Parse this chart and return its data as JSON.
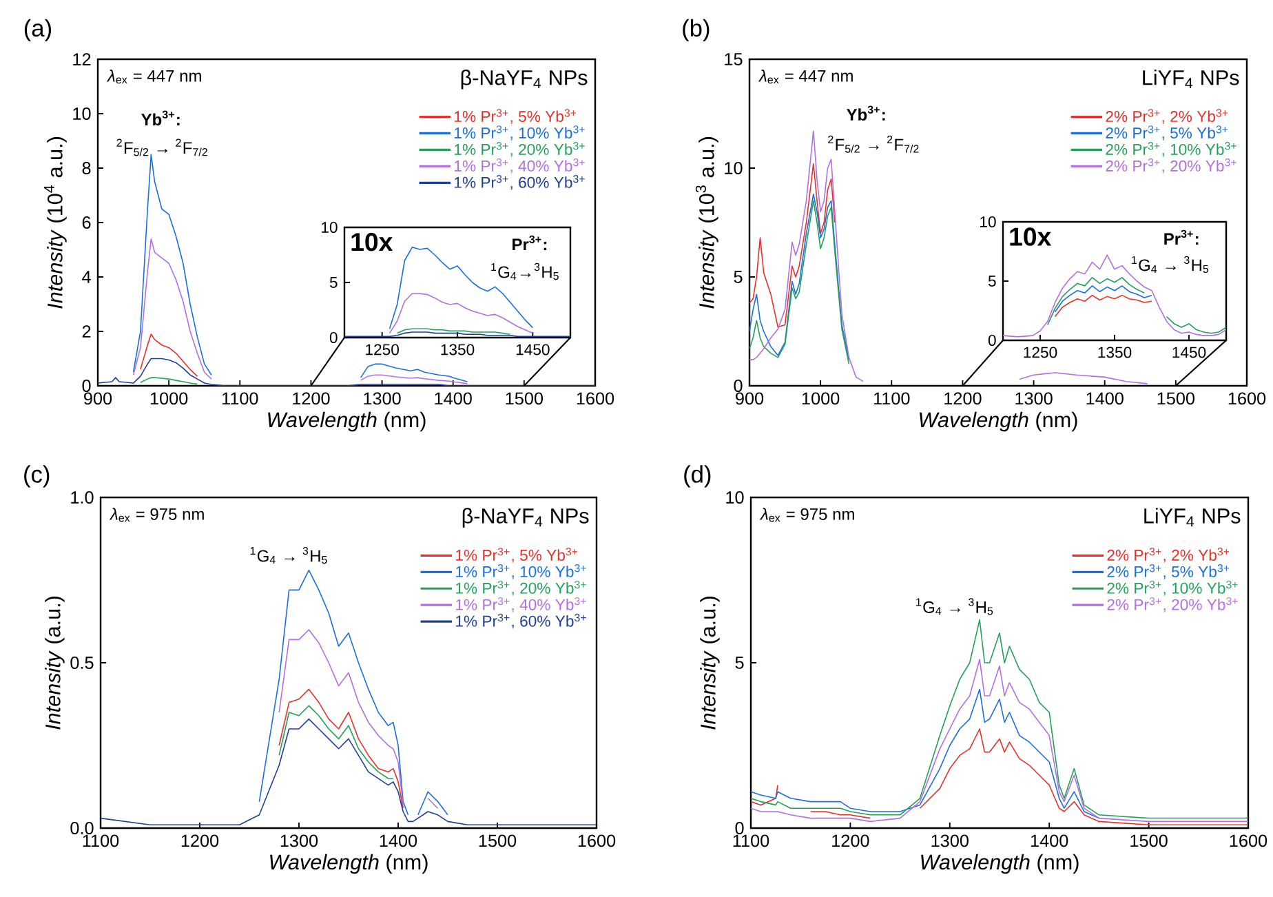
{
  "chart_data": [
    {
      "type": "line",
      "title": "(a)",
      "xlabel": "*Wavelength* (nm)",
      "ylabel": "*Intensity* (10$^{4}$ a.u.)",
      "legend_title": "β-NaYF$_{4}$ NPs",
      "legend": "top right",
      "annotations": [
        "*λ*$_{ex}$ = 447 nm",
        "Yb$^{3+}$:",
        "$^{2}$F$_{5/2}$ → $^{2}$F$_{7/2}$"
      ],
      "xlim": [
        900,
        1600
      ],
      "xticks": [
        900,
        1000,
        1100,
        1200,
        1300,
        1400,
        1500,
        1600
      ],
      "ylim": [
        0,
        12
      ],
      "yticks": [
        0,
        2,
        4,
        6,
        8,
        10,
        12
      ],
      "x": [
        900,
        920,
        925,
        930,
        950,
        960,
        970,
        975,
        980,
        990,
        1000,
        1010,
        1020,
        1030,
        1040,
        1050,
        1060,
        1080,
        1100,
        1150,
        1200,
        1250,
        1270,
        1280,
        1290,
        1300,
        1320,
        1340,
        1350,
        1360,
        1380,
        1395,
        1400,
        1420,
        1450,
        1500,
        1550,
        1600
      ],
      "series": [
        {
          "name": "1% Pr$^{3+}$, 5% Yb$^{3+}$",
          "color": "#e8302a",
          "values": [
            null,
            null,
            null,
            null,
            null,
            0.6,
            1.5,
            1.9,
            1.7,
            1.5,
            1.4,
            1.2,
            0.9,
            0.6,
            0.35,
            null,
            null,
            null,
            null,
            null,
            null,
            null,
            null,
            null,
            null,
            null,
            null,
            null,
            null,
            null,
            null,
            null,
            null,
            null,
            null,
            null,
            null,
            null
          ]
        },
        {
          "name": "1% Pr$^{3+}$, 10% Yb$^{3+}$",
          "color": "#1a6fdc",
          "values": [
            null,
            null,
            null,
            null,
            0.5,
            2.0,
            6.5,
            8.5,
            7.5,
            6.5,
            6.3,
            5.5,
            4.5,
            3.0,
            1.8,
            0.8,
            0.4,
            null,
            null,
            null,
            null,
            null,
            0.3,
            0.7,
            0.8,
            0.8,
            0.65,
            0.55,
            0.6,
            0.5,
            0.4,
            0.35,
            0.3,
            0.15,
            null,
            null,
            null,
            null
          ]
        },
        {
          "name": "1% Pr$^{3+}$, 20% Yb$^{3+}$",
          "color": "#22a05a",
          "values": [
            null,
            null,
            null,
            null,
            null,
            0.12,
            0.25,
            0.3,
            0.3,
            0.28,
            0.25,
            0.2,
            0.15,
            0.1,
            0.06,
            null,
            null,
            null,
            null,
            null,
            null,
            null,
            null,
            null,
            null,
            null,
            null,
            null,
            null,
            null,
            null,
            null,
            null,
            null,
            null,
            null,
            null,
            null
          ]
        },
        {
          "name": "1% Pr$^{3+}$, 40% Yb$^{3+}$",
          "color": "#b36fe0",
          "values": [
            null,
            null,
            null,
            null,
            0.4,
            1.4,
            4.2,
            5.4,
            4.9,
            4.7,
            4.5,
            3.9,
            3.1,
            2.0,
            1.2,
            0.5,
            0.25,
            null,
            null,
            null,
            null,
            null,
            0.2,
            0.35,
            0.4,
            0.4,
            0.33,
            0.28,
            0.3,
            0.26,
            0.2,
            0.17,
            0.15,
            0.08,
            null,
            null,
            null,
            null
          ]
        },
        {
          "name": "1% Pr$^{3+}$, 60% Yb$^{3+}$",
          "color": "#1d3f94",
          "values": [
            0.1,
            0.15,
            0.3,
            0.15,
            0.1,
            0.35,
            0.8,
            1.0,
            1.0,
            1.0,
            0.95,
            0.85,
            0.65,
            0.4,
            0.25,
            0.1,
            0.05,
            0,
            0,
            0,
            0,
            0,
            0.05,
            0.05,
            0.05,
            0.05,
            0.05,
            0.05,
            0.05,
            0.05,
            0.05,
            0,
            0,
            0,
            0,
            0,
            0,
            0
          ]
        }
      ]
    },
    {
      "type": "line",
      "annotations": [
        "10x",
        "Pr$^{3+}$:",
        "$^{1}$G$_{4}$→$^{3}$H$_{5}$"
      ],
      "xlim": [
        1200,
        1500
      ],
      "xticks": [
        1250,
        1350,
        1450
      ],
      "ylim": [
        0,
        10
      ],
      "yticks": [
        0,
        5,
        10
      ],
      "x": [
        1200,
        1220,
        1240,
        1260,
        1270,
        1280,
        1290,
        1300,
        1310,
        1320,
        1330,
        1340,
        1350,
        1360,
        1370,
        1380,
        1390,
        1400,
        1410,
        1420,
        1430,
        1440,
        1450,
        1460,
        1470,
        1480,
        1500
      ],
      "series": [
        {
          "color": "#1a6fdc",
          "values": [
            null,
            null,
            null,
            0.8,
            3.0,
            7.0,
            8.2,
            8.0,
            8.1,
            7.5,
            6.8,
            6.2,
            6.5,
            5.7,
            5.0,
            4.5,
            4.2,
            4.6,
            4.0,
            3.2,
            2.4,
            1.6,
            0.9,
            null,
            null,
            null,
            null
          ]
        },
        {
          "color": "#22a05a",
          "values": [
            null,
            null,
            null,
            null,
            0.4,
            0.7,
            0.8,
            0.8,
            0.8,
            0.7,
            0.7,
            0.6,
            0.6,
            0.6,
            0.5,
            0.5,
            0.5,
            0.5,
            0.4,
            0.3,
            null,
            null,
            null,
            null,
            null,
            null,
            null
          ]
        },
        {
          "color": "#b36fe0",
          "values": [
            null,
            null,
            null,
            0.4,
            1.5,
            3.3,
            4.0,
            4.0,
            3.9,
            3.6,
            3.2,
            3.0,
            3.1,
            2.7,
            2.4,
            2.2,
            2.0,
            2.1,
            1.8,
            1.4,
            1.0,
            0.7,
            0.4,
            null,
            null,
            null,
            null
          ]
        },
        {
          "color": "#1d3f94",
          "values": [
            0.1,
            0.1,
            0.1,
            0.1,
            0.2,
            0.4,
            0.5,
            0.5,
            0.5,
            0.4,
            0.4,
            0.4,
            0.4,
            0.3,
            0.3,
            0.3,
            0.2,
            0.2,
            0.2,
            0.2,
            0.1,
            0.1,
            0.1,
            0.1,
            0.1,
            0.1,
            0.1
          ]
        }
      ]
    },
    {
      "type": "line",
      "title": "(b)",
      "xlabel": "*Wavelength* (nm)",
      "ylabel": "*Intensity* (10$^{3}$ a.u.)",
      "legend_title": "LiYF$_{4}$ NPs",
      "legend": "top right",
      "annotations": [
        "*λ*$_{ex}$ = 447 nm",
        "Yb$^{3+}$:",
        "$^{2}$F$_{5/2}$ → $^{2}$F$_{7/2}$"
      ],
      "xlim": [
        900,
        1600
      ],
      "xticks": [
        900,
        1000,
        1100,
        1200,
        1300,
        1400,
        1500,
        1600
      ],
      "ylim": [
        0,
        15
      ],
      "yticks": [
        0,
        5,
        10,
        15
      ],
      "x": [
        900,
        905,
        910,
        915,
        920,
        930,
        940,
        950,
        960,
        965,
        970,
        980,
        990,
        995,
        1000,
        1005,
        1010,
        1015,
        1020,
        1030,
        1040,
        1050,
        1060,
        1080,
        1100,
        1150,
        1200,
        1250,
        1280,
        1300,
        1330,
        1360,
        1400,
        1430,
        1460
      ],
      "series": [
        {
          "name": "2% Pr$^{3+}$, 2% Yb$^{3+}$",
          "color": "#e8302a",
          "values": [
            3.8,
            4.0,
            5.0,
            6.8,
            5.2,
            4.2,
            2.7,
            2.8,
            5.5,
            5.0,
            5.5,
            7.5,
            10.2,
            8.5,
            7.0,
            7.5,
            9.0,
            9.5,
            7.5,
            null,
            null,
            null,
            null,
            null,
            null,
            null,
            null,
            null,
            null,
            null,
            null,
            null,
            null,
            null,
            null
          ]
        },
        {
          "name": "2% Pr$^{3+}$, 5% Yb$^{3+}$",
          "color": "#1a6fdc",
          "values": [
            2.5,
            3.5,
            4.2,
            3.0,
            2.5,
            1.8,
            1.4,
            2.0,
            4.8,
            4.2,
            4.7,
            7.0,
            8.8,
            8.0,
            6.8,
            7.2,
            8.2,
            8.5,
            6.5,
            2.8,
            1.2,
            null,
            null,
            null,
            null,
            null,
            null,
            null,
            null,
            null,
            null,
            null,
            null,
            null,
            null
          ]
        },
        {
          "name": "2% Pr$^{3+}$, 10% Yb$^{3+}$",
          "color": "#22a05a",
          "values": [
            1.7,
            2.2,
            3.0,
            2.2,
            1.8,
            1.5,
            1.3,
            1.9,
            4.5,
            4.0,
            4.3,
            6.5,
            8.5,
            7.5,
            6.3,
            6.8,
            7.8,
            8.2,
            6.2,
            2.6,
            1.0,
            null,
            null,
            null,
            null,
            null,
            null,
            null,
            null,
            null,
            null,
            null,
            null,
            null,
            null
          ]
        },
        {
          "name": "2% Pr$^{3+}$, 20% Yb$^{3+}$",
          "color": "#b36fe0",
          "values": [
            1.2,
            1.2,
            1.3,
            1.5,
            1.7,
            2.2,
            2.6,
            3.5,
            6.6,
            6.0,
            6.5,
            8.5,
            11.7,
            9.5,
            8.0,
            8.5,
            10.0,
            10.4,
            8.0,
            3.3,
            1.3,
            0.4,
            0.2,
            null,
            null,
            null,
            null,
            null,
            0.3,
            0.5,
            0.6,
            0.5,
            0.4,
            0.2,
            0.1
          ]
        }
      ]
    },
    {
      "type": "line",
      "annotations": [
        "10x",
        "Pr$^{3+}$:",
        "$^{1}$G$_{4}$ → $^{3}$H$_{5}$"
      ],
      "xlim": [
        1200,
        1500
      ],
      "xticks": [
        1250,
        1350,
        1450
      ],
      "ylim": [
        0,
        10
      ],
      "yticks": [
        0,
        5,
        10
      ],
      "x": [
        1200,
        1220,
        1240,
        1250,
        1260,
        1270,
        1280,
        1290,
        1300,
        1310,
        1320,
        1330,
        1340,
        1350,
        1360,
        1370,
        1380,
        1390,
        1400,
        1410,
        1420,
        1430,
        1440,
        1450,
        1460,
        1470,
        1480,
        1490,
        1500
      ],
      "series": [
        {
          "color": "#e8302a",
          "values": [
            null,
            null,
            null,
            null,
            null,
            2.0,
            2.8,
            3.2,
            3.5,
            3.3,
            3.8,
            3.4,
            3.7,
            3.5,
            3.8,
            3.5,
            3.4,
            3.2,
            3.3,
            null,
            null,
            null,
            null,
            null,
            null,
            null,
            null,
            null,
            null
          ]
        },
        {
          "color": "#1a6fdc",
          "values": [
            null,
            null,
            null,
            null,
            null,
            2.4,
            3.3,
            3.8,
            4.2,
            4.0,
            4.6,
            4.1,
            4.5,
            4.2,
            4.6,
            4.1,
            3.9,
            3.6,
            3.8,
            null,
            null,
            null,
            null,
            null,
            null,
            null,
            null,
            null,
            null
          ]
        },
        {
          "color": "#22a05a",
          "values": [
            null,
            null,
            null,
            null,
            1.3,
            2.7,
            3.7,
            4.3,
            4.8,
            4.6,
            5.3,
            4.8,
            5.2,
            4.9,
            5.3,
            4.7,
            4.3,
            4.0,
            null,
            null,
            2.0,
            1.4,
            1.1,
            1.4,
            0.9,
            0.7,
            0.6,
            0.7,
            1.1
          ]
        },
        {
          "color": "#b36fe0",
          "values": [
            0.4,
            0.3,
            0.4,
            0.8,
            1.6,
            3.2,
            4.4,
            5.2,
            5.8,
            5.6,
            6.6,
            6.0,
            7.2,
            6.0,
            6.3,
            5.6,
            5.0,
            4.5,
            4.2,
            2.8,
            1.6,
            0.9,
            0.6,
            0.7,
            0.5,
            0.4,
            0.4,
            0.5,
            0.9
          ]
        }
      ]
    },
    {
      "type": "line",
      "title": "(c)",
      "xlabel": "*Wavelength* (nm)",
      "ylabel": "*Intensity* (a.u.)",
      "legend_title": "β-NaYF$_{4}$ NPs",
      "legend": "top right",
      "annotations": [
        "*λ*$_{ex}$ = 975 nm",
        "$^{1}$G$_{4}$ → $^{3}$H$_{5}$"
      ],
      "xlim": [
        1100,
        1600
      ],
      "xticks": [
        1100,
        1200,
        1300,
        1400,
        1500,
        1600
      ],
      "ylim": [
        0,
        1
      ],
      "yticks": [
        {
          "value": 0,
          "label": "0.0"
        },
        0.5,
        {
          "value": 1,
          "label": "1.0"
        }
      ],
      "x": [
        1100,
        1150,
        1200,
        1240,
        1260,
        1280,
        1290,
        1300,
        1310,
        1320,
        1330,
        1340,
        1350,
        1360,
        1370,
        1380,
        1390,
        1395,
        1400,
        1405,
        1410,
        1415,
        1420,
        1430,
        1440,
        1450,
        1470,
        1500,
        1550,
        1600
      ],
      "series": [
        {
          "name": "1% Pr$^{3+}$, 5% Yb$^{3+}$",
          "color": "#e8302a",
          "values": [
            null,
            null,
            null,
            null,
            null,
            0.25,
            0.38,
            0.39,
            0.42,
            0.38,
            0.33,
            0.3,
            0.35,
            0.27,
            0.22,
            0.18,
            0.17,
            0.18,
            0.14,
            0.06,
            null,
            null,
            null,
            null,
            null,
            null,
            null,
            null,
            null,
            null
          ]
        },
        {
          "name": "1% Pr$^{3+}$, 10% Yb$^{3+}$",
          "color": "#1a6fdc",
          "values": [
            null,
            null,
            null,
            null,
            0.08,
            0.45,
            0.72,
            0.72,
            0.78,
            0.72,
            0.65,
            0.55,
            0.59,
            0.5,
            0.42,
            0.35,
            0.31,
            0.32,
            0.25,
            0.08,
            0.04,
            null,
            0.04,
            0.11,
            0.08,
            0.04,
            null,
            null,
            null,
            null
          ]
        },
        {
          "name": "1% Pr$^{3+}$, 20% Yb$^{3+}$",
          "color": "#22a05a",
          "values": [
            null,
            null,
            null,
            null,
            null,
            0.22,
            0.35,
            0.34,
            0.37,
            0.34,
            0.3,
            0.27,
            0.31,
            0.24,
            0.2,
            0.17,
            0.15,
            0.15,
            null,
            null,
            null,
            null,
            null,
            null,
            null,
            null,
            null,
            null,
            null,
            null
          ]
        },
        {
          "name": "1% Pr$^{3+}$, 40% Yb$^{3+}$",
          "color": "#b36fe0",
          "values": [
            null,
            null,
            null,
            null,
            null,
            0.35,
            0.57,
            0.57,
            0.6,
            0.56,
            0.5,
            0.43,
            0.47,
            0.38,
            0.32,
            0.28,
            0.25,
            0.24,
            0.2,
            0.07,
            null,
            null,
            null,
            0.09,
            0.06,
            null,
            null,
            null,
            null,
            null
          ]
        },
        {
          "name": "1% Pr$^{3+}$, 60% Yb$^{3+}$",
          "color": "#1d3f94",
          "values": [
            0.03,
            0.01,
            0.01,
            0.01,
            0.04,
            0.19,
            0.3,
            0.3,
            0.33,
            0.3,
            0.27,
            0.24,
            0.27,
            0.22,
            0.17,
            0.15,
            0.13,
            0.14,
            0.11,
            0.05,
            0.02,
            0.02,
            0.03,
            0.05,
            0.04,
            0.02,
            0.01,
            0.01,
            0.01,
            0.01
          ]
        }
      ]
    },
    {
      "type": "line",
      "title": "(d)",
      "xlabel": "*Wavelength* (nm)",
      "ylabel": "*Intensity* (a.u.)",
      "legend_title": "LiYF$_{4}$ NPs",
      "legend": "top right",
      "annotations": [
        "*λ*$_{ex}$ = 975 nm",
        "$^{1}$G$_{4}$ → $^{3}$H$_{5}$"
      ],
      "xlim": [
        1100,
        1600
      ],
      "xticks": [
        1100,
        1200,
        1300,
        1400,
        1500,
        1600
      ],
      "ylim": [
        0,
        10
      ],
      "yticks": [
        0,
        5,
        10
      ],
      "x": [
        1100,
        1110,
        1125,
        1127,
        1140,
        1160,
        1175,
        1190,
        1200,
        1220,
        1250,
        1270,
        1290,
        1300,
        1310,
        1320,
        1330,
        1335,
        1340,
        1350,
        1355,
        1360,
        1370,
        1380,
        1390,
        1400,
        1410,
        1415,
        1425,
        1435,
        1450,
        1500,
        1550,
        1600
      ],
      "series": [
        {
          "name": "2% Pr$^{3+}$, 2% Yb$^{3+}$",
          "color": "#e8302a",
          "values": [
            0.8,
            0.7,
            0.9,
            1.3,
            null,
            0.5,
            0.5,
            0.4,
            0.4,
            0.3,
            null,
            0.6,
            1.2,
            1.8,
            2.2,
            2.4,
            3.0,
            2.3,
            2.3,
            2.7,
            2.3,
            2.6,
            2.1,
            1.9,
            1.6,
            1.3,
            0.6,
            0.5,
            0.8,
            0.4,
            0.2,
            0.1,
            0.1,
            0.1
          ]
        },
        {
          "name": "2% Pr$^{3+}$, 5% Yb$^{3+}$",
          "color": "#1a6fdc",
          "values": [
            1.1,
            1.0,
            0.9,
            1.1,
            0.9,
            0.8,
            0.8,
            0.8,
            0.6,
            0.5,
            0.5,
            0.7,
            1.8,
            2.5,
            3.0,
            3.3,
            4.2,
            3.2,
            3.3,
            3.9,
            3.2,
            3.5,
            2.8,
            2.6,
            2.3,
            2.0,
            0.9,
            0.6,
            1.1,
            0.5,
            0.3,
            null,
            null,
            null
          ]
        },
        {
          "name": "2% Pr$^{3+}$, 10% Yb$^{3+}$",
          "color": "#22a05a",
          "values": [
            0.9,
            0.8,
            0.7,
            0.8,
            0.6,
            0.6,
            0.6,
            0.6,
            0.5,
            0.4,
            0.4,
            0.9,
            2.8,
            3.7,
            4.5,
            5.0,
            6.3,
            5.0,
            5.0,
            5.9,
            5.0,
            5.5,
            4.8,
            4.5,
            3.8,
            3.5,
            1.3,
            0.9,
            1.8,
            0.7,
            0.4,
            0.3,
            0.3,
            0.3
          ]
        },
        {
          "name": "2% Pr$^{3+}$, 20% Yb$^{3+}$",
          "color": "#b36fe0",
          "values": [
            0.6,
            0.5,
            0.5,
            0.5,
            0.4,
            0.3,
            0.3,
            0.3,
            0.3,
            0.2,
            0.3,
            0.8,
            2.4,
            3.0,
            3.6,
            4.0,
            5.1,
            4.0,
            4.0,
            4.9,
            4.0,
            4.4,
            3.8,
            3.6,
            3.2,
            2.8,
            1.1,
            0.8,
            1.6,
            0.6,
            0.3,
            0.2,
            0.2,
            0.2
          ]
        }
      ]
    }
  ]
}
